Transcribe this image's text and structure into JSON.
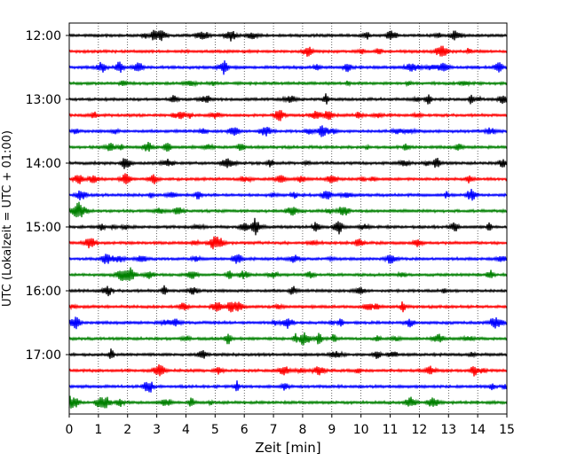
{
  "chart_data": {
    "type": "line",
    "title": "",
    "xlabel": "Zeit  [min]",
    "ylabel": "UTC (Lokalzeit = UTC + 01:00)",
    "xlim": [
      0,
      15
    ],
    "x_ticks": [
      "0",
      "1",
      "2",
      "3",
      "4",
      "5",
      "6",
      "7",
      "8",
      "9",
      "10",
      "11",
      "12",
      "13",
      "14",
      "15"
    ],
    "y_tick_labels": [
      "12:00",
      "13:00",
      "14:00",
      "15:00",
      "16:00",
      "17:00"
    ],
    "grid": "vertical dotted at each minute",
    "trace_colors": [
      "#000000",
      "#ff0000",
      "#0000ff",
      "#008000"
    ],
    "traces": [
      {
        "start": "12:00",
        "color": "#000000"
      },
      {
        "start": "12:15",
        "color": "#ff0000"
      },
      {
        "start": "12:30",
        "color": "#0000ff"
      },
      {
        "start": "12:45",
        "color": "#008000"
      },
      {
        "start": "13:00",
        "color": "#000000"
      },
      {
        "start": "13:15",
        "color": "#ff0000"
      },
      {
        "start": "13:30",
        "color": "#0000ff"
      },
      {
        "start": "13:45",
        "color": "#008000"
      },
      {
        "start": "14:00",
        "color": "#000000"
      },
      {
        "start": "14:15",
        "color": "#ff0000"
      },
      {
        "start": "14:30",
        "color": "#0000ff"
      },
      {
        "start": "14:45",
        "color": "#008000"
      },
      {
        "start": "15:00",
        "color": "#000000"
      },
      {
        "start": "15:15",
        "color": "#ff0000"
      },
      {
        "start": "15:30",
        "color": "#0000ff"
      },
      {
        "start": "15:45",
        "color": "#008000"
      },
      {
        "start": "16:00",
        "color": "#000000"
      },
      {
        "start": "16:15",
        "color": "#ff0000"
      },
      {
        "start": "16:30",
        "color": "#0000ff"
      },
      {
        "start": "16:45",
        "color": "#008000"
      },
      {
        "start": "17:00",
        "color": "#000000"
      },
      {
        "start": "17:15",
        "color": "#ff0000"
      },
      {
        "start": "17:30",
        "color": "#0000ff"
      },
      {
        "start": "17:45",
        "color": "#008000"
      }
    ]
  }
}
